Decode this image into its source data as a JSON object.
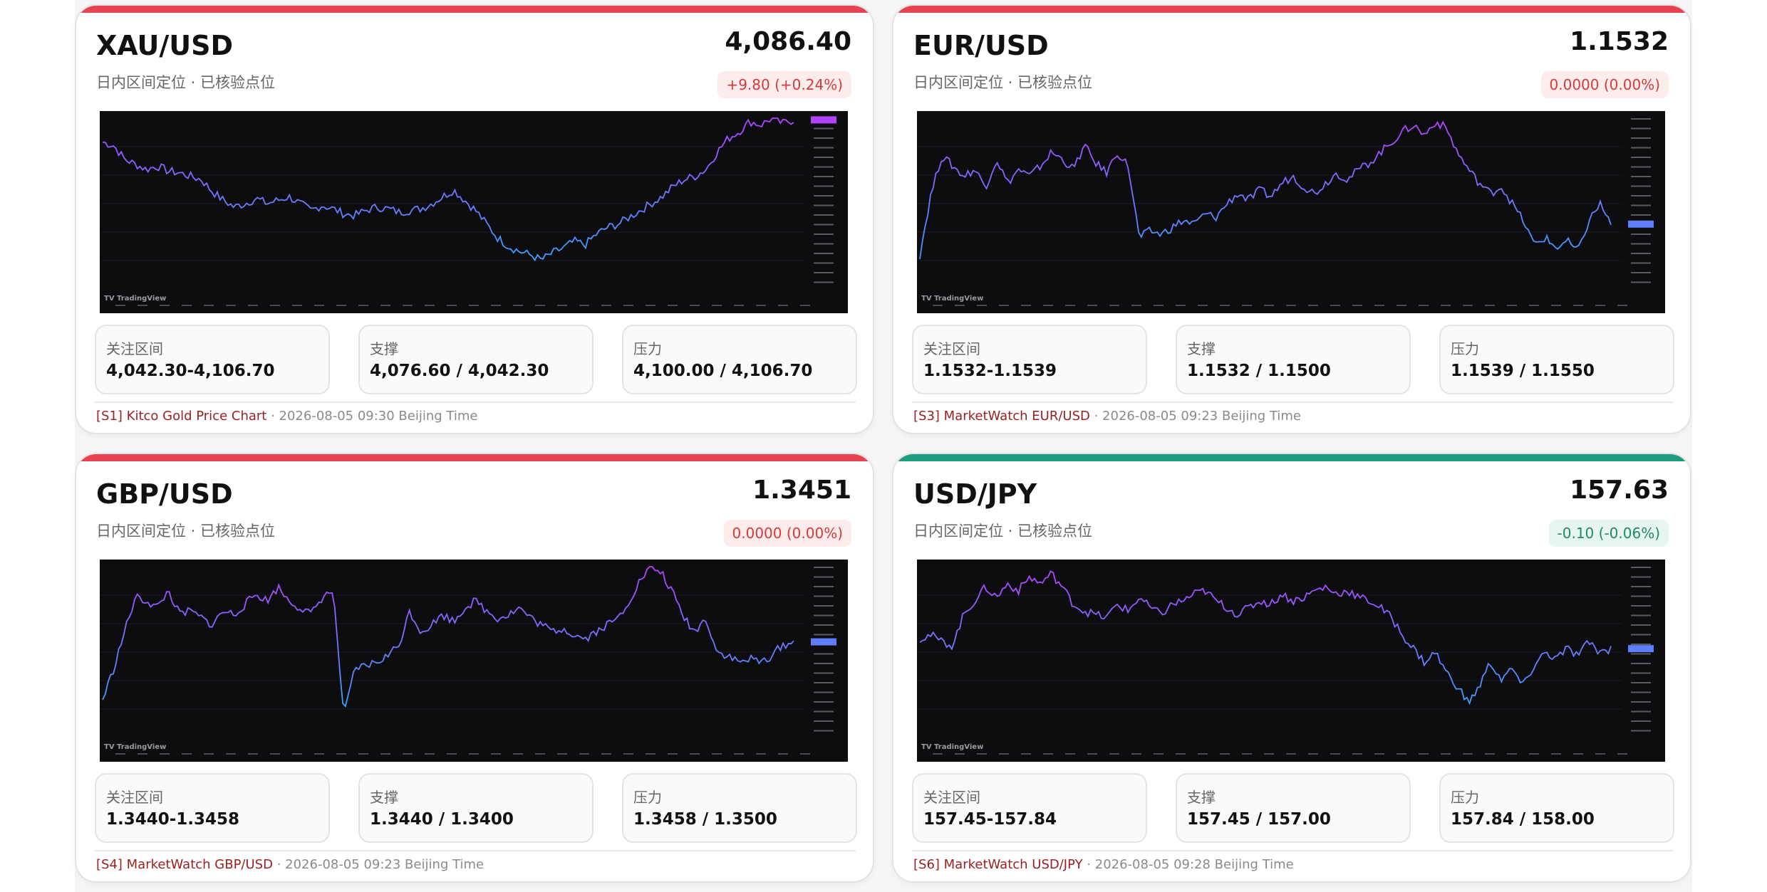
{
  "cards": [
    {
      "symbol": "XAU/USD",
      "price": "4,086.40",
      "subtitle": "日内区间定位 · 已核验点位",
      "change": "+9.80 (+0.24%)",
      "accent": "#e8414f",
      "change_style": "down-red",
      "focus_label": "关注区间",
      "focus_value": "4,042.30-4,106.70",
      "support_label": "支撑",
      "support_value": "4,076.60 / 4,042.30",
      "resistance_label": "压力",
      "resistance_value": "4,100.00 / 4,106.70",
      "source": "[S1] Kitco Gold Price Chart",
      "source_meta": " · 2026-08-05 09:30 Beijing Time",
      "chart_watermark": "TradingView",
      "series": [
        0.86,
        0.84,
        0.76,
        0.73,
        0.7,
        0.72,
        0.69,
        0.68,
        0.66,
        0.64,
        0.57,
        0.52,
        0.48,
        0.5,
        0.53,
        0.5,
        0.52,
        0.54,
        0.5,
        0.46,
        0.49,
        0.47,
        0.44,
        0.43,
        0.46,
        0.48,
        0.47,
        0.45,
        0.46,
        0.47,
        0.5,
        0.54,
        0.58,
        0.52,
        0.46,
        0.38,
        0.3,
        0.25,
        0.22,
        0.2,
        0.17,
        0.21,
        0.24,
        0.28,
        0.26,
        0.32,
        0.36,
        0.38,
        0.42,
        0.46,
        0.5,
        0.54,
        0.6,
        0.64,
        0.66,
        0.7,
        0.8,
        0.88,
        0.92,
        0.98,
        0.96,
        1.0,
        0.97,
        0.99
      ]
    },
    {
      "symbol": "EUR/USD",
      "price": "1.1532",
      "subtitle": "日内区间定位 · 已核验点位",
      "change": "0.0000 (0.00%)",
      "accent": "#e8414f",
      "change_style": "down-red",
      "focus_label": "关注区间",
      "focus_value": "1.1532-1.1539",
      "support_label": "支撑",
      "support_value": "1.1532 / 1.1500",
      "resistance_label": "压力",
      "resistance_value": "1.1539 / 1.1550",
      "source": "[S3] MarketWatch EUR/USD",
      "source_meta": " · 2026-08-05 09:23 Beijing Time",
      "chart_watermark": "TradingView",
      "series": [
        0.2,
        0.55,
        0.78,
        0.72,
        0.66,
        0.7,
        0.6,
        0.76,
        0.62,
        0.7,
        0.66,
        0.72,
        0.8,
        0.76,
        0.7,
        0.84,
        0.74,
        0.68,
        0.8,
        0.72,
        0.3,
        0.34,
        0.32,
        0.36,
        0.4,
        0.38,
        0.44,
        0.42,
        0.5,
        0.56,
        0.52,
        0.58,
        0.54,
        0.62,
        0.66,
        0.6,
        0.56,
        0.62,
        0.68,
        0.64,
        0.7,
        0.74,
        0.8,
        0.86,
        0.92,
        0.96,
        0.9,
        0.98,
        0.94,
        0.8,
        0.7,
        0.62,
        0.56,
        0.6,
        0.5,
        0.4,
        0.26,
        0.3,
        0.24,
        0.28,
        0.22,
        0.4,
        0.5,
        0.38
      ]
    },
    {
      "symbol": "GBP/USD",
      "price": "1.3451",
      "subtitle": "日内区间定位 · 已核验点位",
      "change": "0.0000 (0.00%)",
      "accent": "#e8414f",
      "change_style": "down-red",
      "focus_label": "关注区间",
      "focus_value": "1.3440-1.3458",
      "support_label": "支撑",
      "support_value": "1.3440 / 1.3400",
      "resistance_label": "压力",
      "resistance_value": "1.3458 / 1.3500",
      "source": "[S4] MarketWatch GBP/USD",
      "source_meta": " · 2026-08-05 09:23 Beijing Time",
      "chart_watermark": "TradingView",
      "series": [
        0.22,
        0.4,
        0.62,
        0.82,
        0.8,
        0.76,
        0.86,
        0.72,
        0.74,
        0.7,
        0.66,
        0.74,
        0.72,
        0.78,
        0.84,
        0.8,
        0.88,
        0.8,
        0.76,
        0.72,
        0.82,
        0.86,
        0.12,
        0.4,
        0.42,
        0.44,
        0.48,
        0.54,
        0.74,
        0.62,
        0.66,
        0.72,
        0.68,
        0.76,
        0.8,
        0.74,
        0.7,
        0.72,
        0.76,
        0.7,
        0.66,
        0.62,
        0.64,
        0.6,
        0.58,
        0.62,
        0.66,
        0.7,
        0.8,
        0.92,
        1.0,
        0.96,
        0.84,
        0.7,
        0.62,
        0.7,
        0.5,
        0.48,
        0.44,
        0.46,
        0.44,
        0.48,
        0.54,
        0.56
      ]
    },
    {
      "symbol": "USD/JPY",
      "price": "157.63",
      "subtitle": "日内区间定位 · 已核验点位",
      "change": "-0.10 (-0.06%)",
      "accent": "#1e9c7e",
      "change_style": "neg-green",
      "focus_label": "关注区间",
      "focus_value": "157.45-157.84",
      "support_label": "支撑",
      "support_value": "157.45 / 157.00",
      "resistance_label": "压力",
      "resistance_value": "157.84 / 158.00",
      "source": "[S6] MarketWatch USD/JPY",
      "source_meta": " · 2026-08-05 09:28 Beijing Time",
      "chart_watermark": "TradingView",
      "series": [
        0.58,
        0.6,
        0.56,
        0.54,
        0.72,
        0.8,
        0.88,
        0.82,
        0.9,
        0.86,
        0.94,
        0.9,
        0.96,
        0.88,
        0.78,
        0.74,
        0.72,
        0.7,
        0.78,
        0.74,
        0.82,
        0.76,
        0.72,
        0.78,
        0.8,
        0.84,
        0.86,
        0.8,
        0.76,
        0.72,
        0.76,
        0.8,
        0.78,
        0.84,
        0.8,
        0.82,
        0.86,
        0.88,
        0.84,
        0.86,
        0.82,
        0.8,
        0.76,
        0.7,
        0.6,
        0.52,
        0.44,
        0.5,
        0.38,
        0.3,
        0.2,
        0.3,
        0.44,
        0.34,
        0.4,
        0.3,
        0.42,
        0.5,
        0.46,
        0.52,
        0.48,
        0.56,
        0.5,
        0.52
      ]
    }
  ]
}
